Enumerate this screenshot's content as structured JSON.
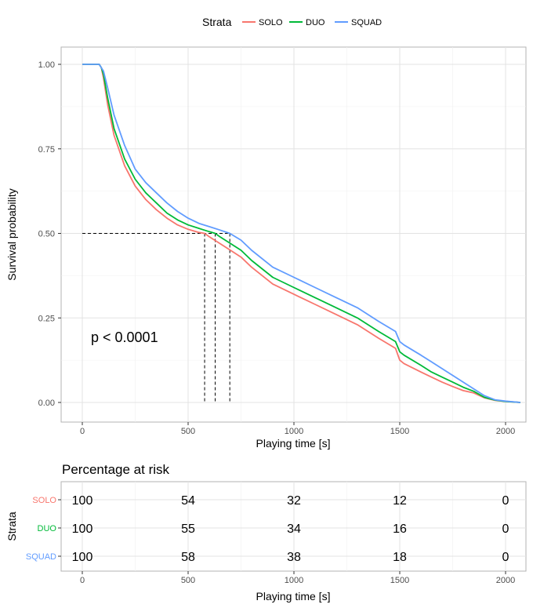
{
  "chart_data": [
    {
      "type": "line",
      "xlabel": "Playing time [s]",
      "ylabel": "Survival probability",
      "xlim": [
        0,
        2100
      ],
      "ylim": [
        0,
        1.0
      ],
      "x_ticks": [
        0,
        500,
        1000,
        1500,
        2000
      ],
      "x_tick_labels": [
        "0",
        "500",
        "1000",
        "1500",
        "2000"
      ],
      "y_ticks": [
        0,
        0.25,
        0.5,
        0.75,
        1.0
      ],
      "y_tick_labels": [
        "0.00",
        "0.25",
        "0.50",
        "0.75",
        "1.00"
      ],
      "grid": true,
      "legend": {
        "title": "Strata",
        "placement": "top"
      },
      "annotation": "p < 0.0001",
      "median_lines": {
        "y": 0.5,
        "x": [
          578,
          628,
          697
        ]
      },
      "series": [
        {
          "name": "SOLO",
          "color": "#F8766D",
          "x": [
            0,
            80,
            90,
            100,
            120,
            150,
            200,
            250,
            300,
            350,
            400,
            450,
            500,
            550,
            578,
            600,
            650,
            700,
            750,
            800,
            900,
            1000,
            1100,
            1200,
            1300,
            1400,
            1480,
            1500,
            1520,
            1600,
            1650,
            1700,
            1750,
            1800,
            1850,
            1900,
            1950,
            2000,
            2070
          ],
          "y": [
            1.0,
            1.0,
            0.99,
            0.96,
            0.88,
            0.79,
            0.7,
            0.64,
            0.6,
            0.57,
            0.545,
            0.525,
            0.512,
            0.503,
            0.5,
            0.49,
            0.47,
            0.45,
            0.43,
            0.4,
            0.35,
            0.32,
            0.29,
            0.26,
            0.23,
            0.19,
            0.16,
            0.125,
            0.115,
            0.09,
            0.075,
            0.06,
            0.047,
            0.035,
            0.028,
            0.014,
            0.006,
            0.003,
            0.0
          ]
        },
        {
          "name": "DUO",
          "color": "#00BA38",
          "x": [
            0,
            80,
            90,
            100,
            120,
            150,
            200,
            250,
            300,
            350,
            400,
            450,
            500,
            550,
            600,
            628,
            650,
            700,
            750,
            800,
            900,
            1000,
            1100,
            1200,
            1300,
            1400,
            1480,
            1500,
            1520,
            1600,
            1650,
            1700,
            1750,
            1800,
            1850,
            1900,
            1950,
            2000,
            2070
          ],
          "y": [
            1.0,
            1.0,
            0.99,
            0.97,
            0.9,
            0.81,
            0.72,
            0.66,
            0.62,
            0.59,
            0.56,
            0.54,
            0.525,
            0.515,
            0.505,
            0.5,
            0.49,
            0.47,
            0.45,
            0.42,
            0.37,
            0.34,
            0.31,
            0.28,
            0.25,
            0.21,
            0.18,
            0.15,
            0.14,
            0.11,
            0.09,
            0.075,
            0.06,
            0.045,
            0.033,
            0.015,
            0.007,
            0.003,
            0.0
          ]
        },
        {
          "name": "SQUAD",
          "color": "#619CFF",
          "x": [
            0,
            80,
            90,
            100,
            120,
            150,
            200,
            250,
            300,
            350,
            400,
            450,
            500,
            550,
            600,
            650,
            697,
            750,
            800,
            900,
            1000,
            1100,
            1200,
            1300,
            1400,
            1480,
            1500,
            1520,
            1600,
            1650,
            1700,
            1750,
            1800,
            1850,
            1900,
            1950,
            2000,
            2070
          ],
          "y": [
            1.0,
            1.0,
            0.99,
            0.98,
            0.93,
            0.85,
            0.76,
            0.69,
            0.65,
            0.62,
            0.59,
            0.565,
            0.545,
            0.53,
            0.52,
            0.51,
            0.5,
            0.48,
            0.45,
            0.4,
            0.37,
            0.34,
            0.31,
            0.28,
            0.24,
            0.21,
            0.18,
            0.17,
            0.14,
            0.12,
            0.1,
            0.08,
            0.06,
            0.04,
            0.02,
            0.008,
            0.004,
            0.0
          ]
        }
      ]
    },
    {
      "type": "table",
      "title": "Percentage at risk",
      "xlabel": "Playing time [s]",
      "ylabel": "Strata",
      "xlim": [
        0,
        2100
      ],
      "x_ticks": [
        0,
        500,
        1000,
        1500,
        2000
      ],
      "x_tick_labels": [
        "0",
        "500",
        "1000",
        "1500",
        "2000"
      ],
      "rows": [
        {
          "name": "SOLO",
          "color": "#F8766D",
          "values": [
            "100",
            "54",
            "32",
            "12",
            "0"
          ]
        },
        {
          "name": "DUO",
          "color": "#00BA38",
          "values": [
            "100",
            "55",
            "34",
            "16",
            "0"
          ]
        },
        {
          "name": "SQUAD",
          "color": "#619CFF",
          "values": [
            "100",
            "58",
            "38",
            "18",
            "0"
          ]
        }
      ]
    }
  ]
}
